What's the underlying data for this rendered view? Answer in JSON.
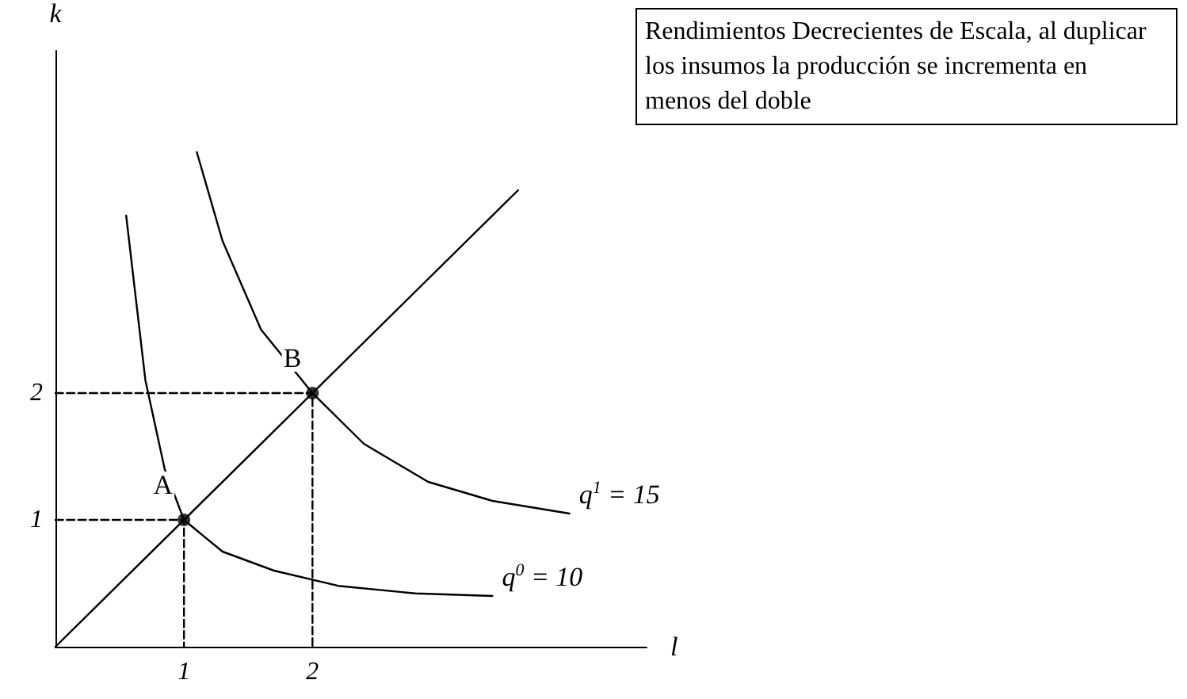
{
  "chart_data": {
    "type": "line",
    "xlabel": "l",
    "ylabel": "k",
    "xlim": [
      0,
      4.6
    ],
    "ylim": [
      0,
      4.7
    ],
    "xticks": [
      1,
      2
    ],
    "yticks": [
      1,
      2
    ],
    "grid": false,
    "marker": "none",
    "series": [
      {
        "color": "#000000",
        "x": [
          0.55,
          0.7,
          0.85,
          1,
          1.3,
          1.7,
          2.2,
          2.8,
          3.4
        ],
        "values": [
          3.4,
          2.1,
          1.4,
          1,
          0.75,
          0.6,
          0.48,
          0.42,
          0.4
        ]
      },
      {
        "color": "#000000",
        "x": [
          1.1,
          1.3,
          1.6,
          2,
          2.4,
          2.9,
          3.4,
          4.0
        ],
        "values": [
          3.9,
          3.2,
          2.5,
          2,
          1.6,
          1.3,
          1.15,
          1.05
        ]
      },
      {
        "color": "#000000",
        "x": [
          0,
          3.6
        ],
        "values": [
          0,
          3.6
        ]
      },
      {
        "color": "#000000",
        "x": [
          0,
          1,
          1
        ],
        "values": [
          1,
          1,
          0
        ],
        "line_style": "dashed"
      },
      {
        "color": "#000000",
        "x": [
          0,
          2,
          2
        ],
        "values": [
          2,
          2,
          0
        ],
        "line_style": "dashed"
      },
      {
        "type": "scatter",
        "color": "#000000",
        "x": [
          1,
          2
        ],
        "values": [
          1,
          2
        ],
        "marker": "circle"
      }
    ],
    "annotations": [
      {
        "text": "A",
        "x": 1,
        "y": 1
      },
      {
        "text": "B",
        "x": 2,
        "y": 2
      },
      {
        "text": "q$^{0}$ = 10",
        "x": 3.4,
        "y": 0.4
      },
      {
        "text": "q$^{1}$ = 15",
        "x": 4.0,
        "y": 1.05
      },
      "Rendimientos Decrecientes de Escala, al duplicar los insumos la producción se incrementa en menos del doble"
    ]
  }
}
